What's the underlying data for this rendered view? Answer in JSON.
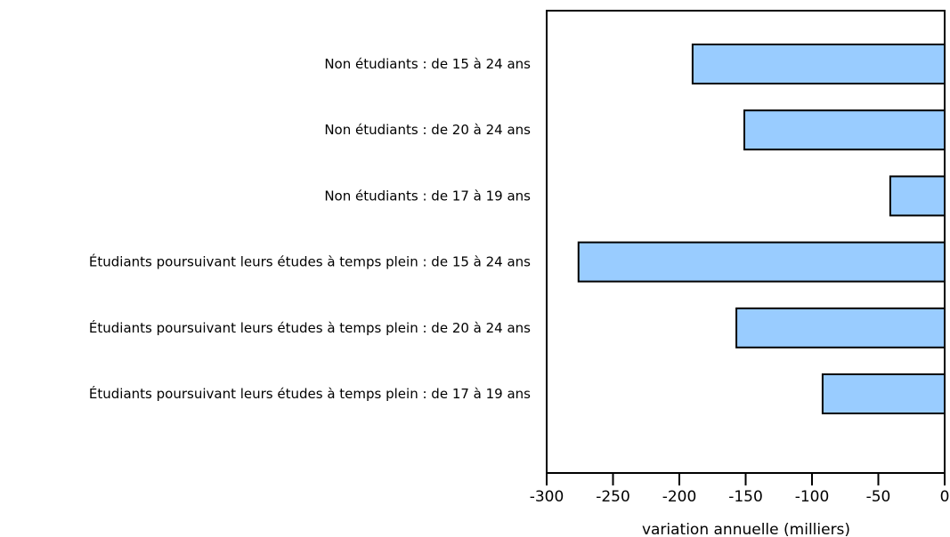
{
  "chart_data": {
    "type": "bar",
    "orientation": "horizontal",
    "categories": [
      "Non étudiants : de 15 à 24 ans",
      "Non étudiants : de 20 à 24 ans",
      "Non étudiants : de 17 à 19 ans",
      "Étudiants poursuivant leurs études à temps plein : de 15 à 24 ans",
      "Étudiants poursuivant leurs études à temps plein : de 20 à 24 ans",
      "Étudiants poursuivant leurs études à temps plein : de 17 à 19 ans"
    ],
    "values": [
      -190,
      -151,
      -41,
      -276,
      -157,
      -92
    ],
    "xlabel": "variation annuelle (milliers)",
    "ylabel": "",
    "xlim": [
      -300,
      0
    ],
    "xticks": [
      -300,
      -250,
      -200,
      -150,
      -100,
      -50,
      0
    ],
    "xtick_labels": [
      "-300",
      "-250",
      "-200",
      "-150",
      "-100",
      "-50",
      "0"
    ],
    "grid": false,
    "legend": "none",
    "colors": {
      "bar_fill": "#99ccff",
      "bar_stroke": "#000000",
      "axis": "#000000"
    }
  }
}
